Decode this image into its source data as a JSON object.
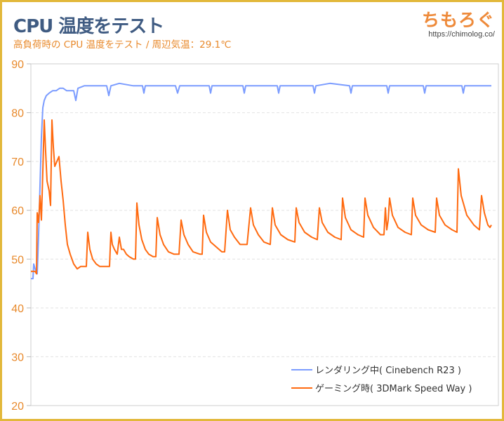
{
  "header": {
    "title": "CPU 温度をテスト",
    "subtitle": "高負荷時の CPU 温度をテスト / 周辺気温：29.1℃"
  },
  "logo": {
    "text": "ちもろぐ",
    "url": "https://chimolog.co/"
  },
  "chart_data": {
    "type": "line",
    "title": "CPU 温度をテスト",
    "subtitle": "高負荷時の CPU 温度をテスト / 周辺気温：29.1℃",
    "xlabel": "",
    "ylabel": "",
    "ylim": [
      20,
      90
    ],
    "yticks": [
      "20",
      "30",
      "40",
      "50",
      "60",
      "70",
      "80",
      "90"
    ],
    "grid": true,
    "legend_position": "bottom-right",
    "series": [
      {
        "name": "レンダリング中( Cinebench R23 )",
        "color": "#7b9cff",
        "points": [
          [
            0,
            46
          ],
          [
            3,
            46
          ],
          [
            4,
            49
          ],
          [
            6,
            48
          ],
          [
            9,
            47
          ],
          [
            11,
            55
          ],
          [
            13,
            65
          ],
          [
            15,
            75
          ],
          [
            17,
            81
          ],
          [
            19,
            82.5
          ],
          [
            22,
            83.5
          ],
          [
            26,
            84
          ],
          [
            31,
            84.5
          ],
          [
            36,
            84.5
          ],
          [
            41,
            85
          ],
          [
            46,
            85
          ],
          [
            51,
            84.5
          ],
          [
            56,
            84.5
          ],
          [
            61,
            84.5
          ],
          [
            64,
            82.5
          ],
          [
            67,
            85
          ],
          [
            76,
            85.5
          ],
          [
            86,
            85.5
          ],
          [
            101,
            85.5
          ],
          [
            108,
            85.5
          ],
          [
            111,
            83.5
          ],
          [
            114,
            85.5
          ],
          [
            126,
            86
          ],
          [
            146,
            85.5
          ],
          [
            159,
            85.5
          ],
          [
            161,
            84
          ],
          [
            163,
            85.5
          ],
          [
            206,
            85.5
          ],
          [
            209,
            84
          ],
          [
            212,
            85.5
          ],
          [
            254,
            85.5
          ],
          [
            256,
            84
          ],
          [
            258,
            85.5
          ],
          [
            302,
            85.5
          ],
          [
            304,
            84
          ],
          [
            306,
            85.5
          ],
          [
            351,
            85.5
          ],
          [
            353,
            84
          ],
          [
            355,
            85.5
          ],
          [
            402,
            85.5
          ],
          [
            404,
            84
          ],
          [
            406,
            85.5
          ],
          [
            426,
            86
          ],
          [
            454,
            85.5
          ],
          [
            456,
            84
          ],
          [
            458,
            85.5
          ],
          [
            507,
            85.5
          ],
          [
            509,
            84
          ],
          [
            511,
            85.5
          ],
          [
            559,
            85.5
          ],
          [
            561,
            84
          ],
          [
            563,
            85.5
          ],
          [
            614,
            85.5
          ],
          [
            616,
            84
          ],
          [
            618,
            85.5
          ],
          [
            656,
            85.5
          ]
        ]
      },
      {
        "name": "ゲーミング時( 3DMark Speed Way )",
        "color": "#ff6a10",
        "points": [
          [
            0,
            47.5
          ],
          [
            6,
            47.5
          ],
          [
            8,
            47
          ],
          [
            9,
            59.5
          ],
          [
            11,
            57.5
          ],
          [
            13,
            63
          ],
          [
            15,
            58
          ],
          [
            17,
            68
          ],
          [
            19,
            78.5
          ],
          [
            21,
            72
          ],
          [
            23,
            66
          ],
          [
            26,
            64
          ],
          [
            28,
            61
          ],
          [
            30,
            78.5
          ],
          [
            32,
            73
          ],
          [
            34,
            69
          ],
          [
            37,
            70
          ],
          [
            40,
            71
          ],
          [
            43,
            66
          ],
          [
            46,
            62
          ],
          [
            49,
            57
          ],
          [
            52,
            53
          ],
          [
            56,
            51
          ],
          [
            61,
            49
          ],
          [
            66,
            48
          ],
          [
            71,
            48.5
          ],
          [
            76,
            48.5
          ],
          [
            79,
            48.5
          ],
          [
            81,
            55.5
          ],
          [
            84,
            52
          ],
          [
            88,
            50
          ],
          [
            93,
            49
          ],
          [
            98,
            48.5
          ],
          [
            106,
            48.5
          ],
          [
            112,
            48.5
          ],
          [
            114,
            55.5
          ],
          [
            116,
            53
          ],
          [
            119,
            52
          ],
          [
            123,
            51
          ],
          [
            126,
            54.5
          ],
          [
            129,
            52
          ],
          [
            132,
            52
          ],
          [
            136,
            51
          ],
          [
            140,
            50.5
          ],
          [
            146,
            50
          ],
          [
            149,
            50
          ],
          [
            151,
            61.5
          ],
          [
            154,
            57
          ],
          [
            158,
            54
          ],
          [
            163,
            52
          ],
          [
            168,
            51
          ],
          [
            174,
            50.5
          ],
          [
            178,
            50.5
          ],
          [
            180,
            58.5
          ],
          [
            184,
            55
          ],
          [
            189,
            53
          ],
          [
            196,
            51.5
          ],
          [
            204,
            51
          ],
          [
            211,
            51
          ],
          [
            214,
            58
          ],
          [
            218,
            55
          ],
          [
            224,
            53
          ],
          [
            231,
            51.5
          ],
          [
            241,
            51
          ],
          [
            244,
            51
          ],
          [
            246,
            59
          ],
          [
            250,
            55.5
          ],
          [
            256,
            53.5
          ],
          [
            264,
            52.5
          ],
          [
            272,
            51.5
          ],
          [
            276,
            51.5
          ],
          [
            280,
            60
          ],
          [
            284,
            56
          ],
          [
            290,
            54.5
          ],
          [
            298,
            53
          ],
          [
            308,
            53
          ],
          [
            313,
            60.5
          ],
          [
            317,
            57
          ],
          [
            324,
            55
          ],
          [
            332,
            53.5
          ],
          [
            341,
            53
          ],
          [
            344,
            60.5
          ],
          [
            348,
            57
          ],
          [
            356,
            55
          ],
          [
            366,
            54
          ],
          [
            376,
            53.5
          ],
          [
            378,
            60.5
          ],
          [
            382,
            57.5
          ],
          [
            390,
            55.5
          ],
          [
            400,
            54.5
          ],
          [
            408,
            54
          ],
          [
            411,
            60.5
          ],
          [
            415,
            57.5
          ],
          [
            423,
            55.5
          ],
          [
            433,
            54.5
          ],
          [
            442,
            54
          ],
          [
            444,
            62.5
          ],
          [
            448,
            58.5
          ],
          [
            456,
            56
          ],
          [
            466,
            55
          ],
          [
            474,
            54.5
          ],
          [
            476,
            62.5
          ],
          [
            480,
            59
          ],
          [
            488,
            56.5
          ],
          [
            498,
            55
          ],
          [
            503,
            55
          ],
          [
            505,
            60.5
          ],
          [
            507,
            56
          ],
          [
            509,
            58
          ],
          [
            511,
            62.5
          ],
          [
            515,
            59
          ],
          [
            523,
            56.5
          ],
          [
            533,
            55.5
          ],
          [
            542,
            55
          ],
          [
            544,
            62.5
          ],
          [
            548,
            59
          ],
          [
            556,
            57
          ],
          [
            566,
            56
          ],
          [
            576,
            55.5
          ],
          [
            578,
            62.5
          ],
          [
            582,
            59
          ],
          [
            590,
            57
          ],
          [
            600,
            56
          ],
          [
            607,
            55.5
          ],
          [
            609,
            68.5
          ],
          [
            613,
            63
          ],
          [
            621,
            59
          ],
          [
            631,
            57
          ],
          [
            639,
            56
          ],
          [
            642,
            63
          ],
          [
            646,
            59.5
          ],
          [
            651,
            57
          ],
          [
            654,
            56.5
          ],
          [
            656,
            57
          ]
        ]
      }
    ]
  }
}
